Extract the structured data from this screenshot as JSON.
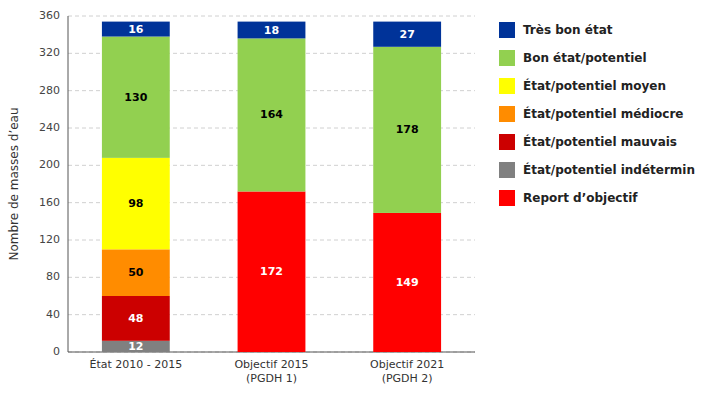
{
  "chart_data": {
    "type": "bar",
    "stacked": true,
    "data_labels": true,
    "grid": true,
    "legend": "right",
    "y_label": "Nombre de masses d’eau",
    "categories": [
      "État 2010 - 2015",
      "Objectif 2015\n(PGDH 1)",
      "Objectif 2021\n(PGDH 2)"
    ],
    "series": [
      {
        "name": "Report d’objectif",
        "color": "#ff0000",
        "values": [
          0,
          172,
          149
        ]
      },
      {
        "name": "État/potentiel indétermin",
        "color": "#808080",
        "values": [
          12,
          0,
          0
        ]
      },
      {
        "name": "État/potentiel mauvais",
        "color": "#cc0000",
        "values": [
          48,
          0,
          0
        ]
      },
      {
        "name": "État/potentiel médiocre",
        "color": "#ff8c00",
        "values": [
          50,
          0,
          0
        ]
      },
      {
        "name": "État/potentiel moyen",
        "color": "#ffff00",
        "values": [
          98,
          0,
          0
        ]
      },
      {
        "name": "Bon état/potentiel",
        "color": "#92d050",
        "values": [
          130,
          164,
          178
        ]
      },
      {
        "name": "Très bon état",
        "color": "#003399",
        "values": [
          16,
          18,
          27
        ]
      }
    ],
    "ylim": [
      0,
      360
    ],
    "yticks": [
      0,
      40,
      80,
      120,
      160,
      200,
      240,
      280,
      320,
      360
    ]
  }
}
